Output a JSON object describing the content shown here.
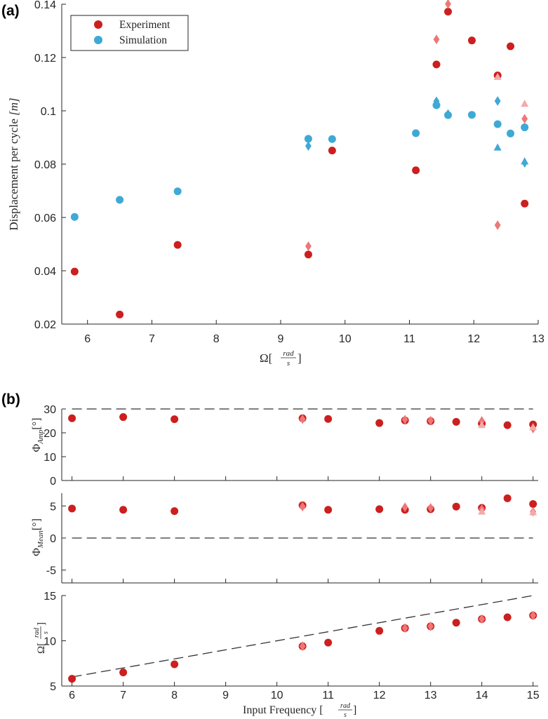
{
  "colors": {
    "experiment": "#cc1f1f",
    "experiment_light": "#ee7777",
    "experiment_lighter": "#f5aaaa",
    "simulation": "#3fa9d6",
    "axis": "#262626"
  },
  "panels": {
    "a_label": "(a)",
    "b_label": "(b)"
  },
  "legend": {
    "experiment": "Experiment",
    "simulation": "Simulation"
  },
  "chart_data": [
    {
      "id": "a",
      "type": "scatter",
      "title": "",
      "xlabel": "Ω[rad/s]",
      "xlabel_main": "Ω[",
      "xlabel_num": "rad",
      "xlabel_den": "s",
      "xlabel_close": "]",
      "ylabel_main": "Displacement per cycle ",
      "ylabel_unit": "[m]",
      "xlim": [
        5.6,
        13
      ],
      "ylim": [
        0.02,
        0.14
      ],
      "xticks": [
        "6",
        "7",
        "8",
        "9",
        "10",
        "11",
        "12",
        "13"
      ],
      "yticks": [
        "0.02",
        "0.04",
        "0.06",
        "0.08",
        "0.1",
        "0.12",
        "0.14"
      ],
      "legend_position": "top-left",
      "series": [
        {
          "name": "Experiment",
          "marker": "circle",
          "shade": "experiment",
          "points": [
            [
              5.8,
              0.0397
            ],
            [
              6.5,
              0.0236
            ],
            [
              7.4,
              0.0497
            ],
            [
              9.43,
              0.0461
            ],
            [
              9.8,
              0.0851
            ],
            [
              11.1,
              0.0777
            ],
            [
              11.42,
              0.1174
            ],
            [
              11.6,
              0.1372
            ],
            [
              11.97,
              0.1264
            ],
            [
              12.37,
              0.1133
            ],
            [
              12.57,
              0.1242
            ],
            [
              12.79,
              0.0652
            ]
          ]
        },
        {
          "name": "Experiment",
          "marker": "diamond",
          "shade": "experiment_light",
          "points": [
            [
              9.43,
              0.0492
            ],
            [
              11.42,
              0.1268
            ],
            [
              11.6,
              0.1401
            ],
            [
              12.37,
              0.0571
            ],
            [
              12.79,
              0.097
            ]
          ]
        },
        {
          "name": "Experiment",
          "marker": "triangle",
          "shade": "experiment_lighter",
          "points": [
            [
              12.37,
              0.1127
            ],
            [
              12.79,
              0.1026
            ]
          ]
        },
        {
          "name": "Simulation",
          "marker": "circle",
          "shade": "simulation",
          "points": [
            [
              5.8,
              0.0602
            ],
            [
              6.5,
              0.0666
            ],
            [
              7.4,
              0.0698
            ],
            [
              9.43,
              0.0895
            ],
            [
              9.8,
              0.0894
            ],
            [
              11.1,
              0.0916
            ],
            [
              11.42,
              0.1021
            ],
            [
              11.6,
              0.0984
            ],
            [
              11.97,
              0.0985
            ],
            [
              12.37,
              0.095
            ],
            [
              12.57,
              0.0915
            ],
            [
              12.79,
              0.0938
            ]
          ]
        },
        {
          "name": "Simulation",
          "marker": "diamond",
          "shade": "simulation",
          "points": [
            [
              9.43,
              0.0868
            ],
            [
              11.42,
              0.1036
            ],
            [
              11.6,
              0.0988
            ],
            [
              12.37,
              0.1037
            ],
            [
              12.79,
              0.0805
            ]
          ]
        },
        {
          "name": "Simulation",
          "marker": "triangle",
          "shade": "simulation",
          "points": [
            [
              12.37,
              0.0862
            ],
            [
              12.79,
              0.081
            ]
          ]
        }
      ]
    },
    {
      "id": "b1",
      "type": "scatter",
      "ylabel_main": "Φ",
      "ylabel_sub": "Amp",
      "ylabel_unit": "[°]",
      "xlim": [
        5.8,
        15.1
      ],
      "ylim": [
        0,
        30
      ],
      "yticks": [
        "0",
        "10",
        "20",
        "30"
      ],
      "reference_line": {
        "type": "horizontal",
        "y": 30
      },
      "series": [
        {
          "marker": "circle",
          "shade": "experiment",
          "points": [
            [
              6,
              26.1
            ],
            [
              7,
              26.6
            ],
            [
              8,
              25.7
            ],
            [
              10.5,
              26.1
            ],
            [
              11,
              25.8
            ],
            [
              12,
              24.1
            ],
            [
              12.5,
              25.2
            ],
            [
              13,
              24.9
            ],
            [
              13.5,
              24.6
            ],
            [
              14,
              23.9
            ],
            [
              14.5,
              23.2
            ],
            [
              15,
              23.5
            ]
          ]
        },
        {
          "marker": "diamond",
          "shade": "experiment_light",
          "points": [
            [
              10.5,
              25.7
            ],
            [
              12.5,
              25.5
            ],
            [
              13,
              25.1
            ],
            [
              14,
              25.0
            ],
            [
              15,
              21.8
            ]
          ]
        },
        {
          "marker": "triangle",
          "shade": "experiment_lighter",
          "points": [
            [
              14,
              23.2
            ],
            [
              15,
              22.3
            ]
          ]
        }
      ]
    },
    {
      "id": "b2",
      "type": "scatter",
      "ylabel_main": "Φ",
      "ylabel_sub": "Mean",
      "ylabel_unit": "[°]",
      "xlim": [
        5.8,
        15.1
      ],
      "ylim": [
        -7,
        7
      ],
      "yticks": [
        "-5",
        "0",
        "5"
      ],
      "reference_line": {
        "type": "horizontal",
        "y": 0
      },
      "series": [
        {
          "marker": "circle",
          "shade": "experiment",
          "points": [
            [
              6,
              4.6
            ],
            [
              7,
              4.4
            ],
            [
              8,
              4.2
            ],
            [
              10.5,
              5.1
            ],
            [
              11,
              4.4
            ],
            [
              12,
              4.5
            ],
            [
              12.5,
              4.4
            ],
            [
              13,
              4.5
            ],
            [
              13.5,
              4.9
            ],
            [
              14,
              4.7
            ],
            [
              14.5,
              6.2
            ],
            [
              15,
              5.3
            ]
          ]
        },
        {
          "marker": "diamond",
          "shade": "experiment_light",
          "points": [
            [
              10.5,
              4.9
            ],
            [
              12.5,
              4.8
            ],
            [
              13,
              4.7
            ],
            [
              14,
              4.5
            ],
            [
              15,
              4.1
            ]
          ]
        },
        {
          "marker": "triangle",
          "shade": "experiment_lighter",
          "points": [
            [
              14,
              4.1
            ],
            [
              15,
              4.0
            ]
          ]
        }
      ]
    },
    {
      "id": "b3",
      "type": "scatter",
      "ylabel_main": "Ω[",
      "ylabel_num": "rad",
      "ylabel_den": "s",
      "ylabel_close": "]",
      "xlabel_main": "Input Frequency [",
      "xlabel_num": "rad",
      "xlabel_den": "s",
      "xlabel_close": "]",
      "xlim": [
        5.8,
        15.1
      ],
      "ylim": [
        5,
        15
      ],
      "xticks": [
        "6",
        "7",
        "8",
        "9",
        "10",
        "11",
        "12",
        "13",
        "14",
        "15"
      ],
      "yticks": [
        "5",
        "10",
        "15"
      ],
      "reference_line": {
        "type": "diagonal",
        "from": [
          6,
          6
        ],
        "to": [
          15,
          15
        ]
      },
      "series": [
        {
          "marker": "circle",
          "shade": "experiment",
          "points": [
            [
              6,
              5.8
            ],
            [
              7,
              6.5
            ],
            [
              8,
              7.4
            ],
            [
              10.5,
              9.4
            ],
            [
              11,
              9.8
            ],
            [
              12,
              11.1
            ],
            [
              12.5,
              11.4
            ],
            [
              13,
              11.6
            ],
            [
              13.5,
              12.0
            ],
            [
              14,
              12.4
            ],
            [
              14.5,
              12.6
            ],
            [
              15,
              12.8
            ]
          ]
        },
        {
          "marker": "diamond",
          "shade": "experiment_light",
          "points": [
            [
              10.5,
              9.4
            ],
            [
              12.5,
              11.4
            ],
            [
              13,
              11.6
            ],
            [
              14,
              12.4
            ],
            [
              15,
              12.8
            ]
          ]
        }
      ]
    }
  ]
}
